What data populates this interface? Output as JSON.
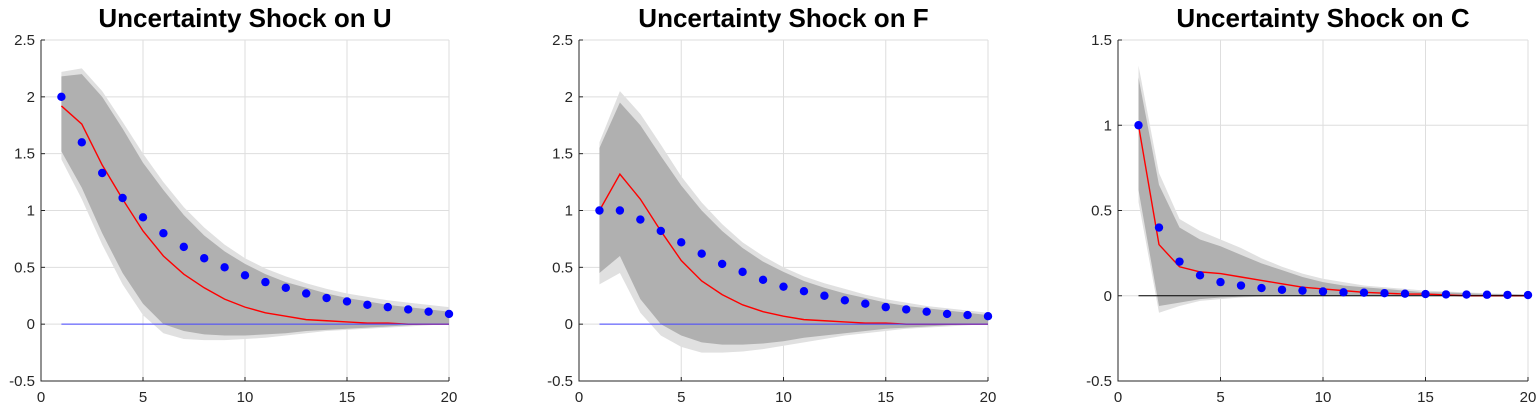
{
  "chart_data": [
    {
      "type": "line",
      "title": "Uncertainty Shock on U",
      "xlabel": "",
      "ylabel": "",
      "xlim": [
        0,
        20
      ],
      "ylim": [
        -0.5,
        2.5
      ],
      "xticks": [
        0,
        5,
        10,
        15,
        20
      ],
      "yticks": [
        -0.5,
        0,
        0.5,
        1,
        1.5,
        2,
        2.5
      ],
      "grid": true,
      "x": [
        1,
        2,
        3,
        4,
        5,
        6,
        7,
        8,
        9,
        10,
        11,
        12,
        13,
        14,
        15,
        16,
        17,
        18,
        19,
        20
      ],
      "series": [
        {
          "role": "outer-band",
          "color": "#e0e0e0",
          "upper": [
            2.22,
            2.25,
            2.05,
            1.78,
            1.5,
            1.25,
            1.03,
            0.85,
            0.7,
            0.58,
            0.49,
            0.42,
            0.36,
            0.31,
            0.27,
            0.24,
            0.21,
            0.19,
            0.17,
            0.15
          ],
          "lower": [
            1.45,
            1.1,
            0.7,
            0.35,
            0.08,
            -0.08,
            -0.13,
            -0.14,
            -0.14,
            -0.13,
            -0.12,
            -0.1,
            -0.08,
            -0.06,
            -0.05,
            -0.04,
            -0.03,
            -0.02,
            -0.01,
            0.0
          ]
        },
        {
          "role": "inner-band",
          "color": "#b0b0b0",
          "upper": [
            2.18,
            2.2,
            2.0,
            1.72,
            1.42,
            1.18,
            0.96,
            0.78,
            0.64,
            0.53,
            0.44,
            0.37,
            0.32,
            0.27,
            0.23,
            0.2,
            0.17,
            0.15,
            0.13,
            0.11
          ],
          "lower": [
            1.52,
            1.2,
            0.8,
            0.45,
            0.18,
            0.0,
            -0.06,
            -0.09,
            -0.1,
            -0.1,
            -0.09,
            -0.08,
            -0.06,
            -0.05,
            -0.04,
            -0.03,
            -0.02,
            -0.01,
            0.0,
            0.0
          ]
        },
        {
          "role": "median-line",
          "color": "#ff0000",
          "values": [
            1.92,
            1.76,
            1.4,
            1.1,
            0.82,
            0.6,
            0.44,
            0.32,
            0.22,
            0.15,
            0.1,
            0.07,
            0.04,
            0.03,
            0.02,
            0.01,
            0.01,
            0.0,
            0.0,
            0.0
          ]
        },
        {
          "role": "zero-line",
          "color": "#4444ff",
          "values": [
            0,
            0,
            0,
            0,
            0,
            0,
            0,
            0,
            0,
            0,
            0,
            0,
            0,
            0,
            0,
            0,
            0,
            0,
            0,
            0
          ]
        },
        {
          "role": "points",
          "color": "#0000ff",
          "values": [
            2.0,
            1.6,
            1.33,
            1.11,
            0.94,
            0.8,
            0.68,
            0.58,
            0.5,
            0.43,
            0.37,
            0.32,
            0.27,
            0.23,
            0.2,
            0.17,
            0.15,
            0.13,
            0.11,
            0.09
          ]
        }
      ]
    },
    {
      "type": "line",
      "title": "Uncertainty Shock on F",
      "xlabel": "",
      "ylabel": "",
      "xlim": [
        0,
        20
      ],
      "ylim": [
        -0.5,
        2.5
      ],
      "xticks": [
        0,
        5,
        10,
        15,
        20
      ],
      "yticks": [
        -0.5,
        0,
        0.5,
        1,
        1.5,
        2,
        2.5
      ],
      "grid": true,
      "x": [
        1,
        2,
        3,
        4,
        5,
        6,
        7,
        8,
        9,
        10,
        11,
        12,
        13,
        14,
        15,
        16,
        17,
        18,
        19,
        20
      ],
      "series": [
        {
          "role": "outer-band",
          "color": "#e0e0e0",
          "upper": [
            1.6,
            2.05,
            1.85,
            1.58,
            1.3,
            1.07,
            0.88,
            0.72,
            0.6,
            0.5,
            0.42,
            0.36,
            0.31,
            0.26,
            0.22,
            0.19,
            0.16,
            0.14,
            0.12,
            0.1
          ],
          "lower": [
            0.35,
            0.45,
            0.1,
            -0.1,
            -0.2,
            -0.25,
            -0.25,
            -0.24,
            -0.22,
            -0.19,
            -0.16,
            -0.13,
            -0.1,
            -0.08,
            -0.06,
            -0.04,
            -0.03,
            -0.02,
            -0.01,
            0.0
          ]
        },
        {
          "role": "inner-band",
          "color": "#b0b0b0",
          "upper": [
            1.55,
            1.95,
            1.75,
            1.48,
            1.22,
            1.0,
            0.82,
            0.67,
            0.55,
            0.46,
            0.38,
            0.32,
            0.27,
            0.23,
            0.19,
            0.16,
            0.14,
            0.12,
            0.1,
            0.08
          ],
          "lower": [
            0.45,
            0.6,
            0.22,
            0.0,
            -0.1,
            -0.16,
            -0.18,
            -0.18,
            -0.17,
            -0.15,
            -0.12,
            -0.1,
            -0.08,
            -0.06,
            -0.04,
            -0.03,
            -0.02,
            -0.01,
            0.0,
            0.0
          ]
        },
        {
          "role": "median-line",
          "color": "#ff0000",
          "values": [
            1.0,
            1.32,
            1.1,
            0.82,
            0.56,
            0.38,
            0.26,
            0.17,
            0.11,
            0.07,
            0.04,
            0.03,
            0.02,
            0.01,
            0.01,
            0.0,
            0.0,
            0.0,
            0.0,
            0.0
          ]
        },
        {
          "role": "zero-line",
          "color": "#4444ff",
          "values": [
            0,
            0,
            0,
            0,
            0,
            0,
            0,
            0,
            0,
            0,
            0,
            0,
            0,
            0,
            0,
            0,
            0,
            0,
            0,
            0
          ]
        },
        {
          "role": "points",
          "color": "#0000ff",
          "values": [
            1.0,
            1.0,
            0.92,
            0.82,
            0.72,
            0.62,
            0.53,
            0.46,
            0.39,
            0.33,
            0.29,
            0.25,
            0.21,
            0.18,
            0.15,
            0.13,
            0.11,
            0.09,
            0.08,
            0.07
          ]
        }
      ]
    },
    {
      "type": "line",
      "title": "Uncertainty Shock on C",
      "xlabel": "",
      "ylabel": "",
      "xlim": [
        0,
        20
      ],
      "ylim": [
        -0.5,
        1.5
      ],
      "xticks": [
        0,
        5,
        10,
        15,
        20
      ],
      "yticks": [
        -0.5,
        0,
        0.5,
        1,
        1.5
      ],
      "grid": true,
      "x": [
        1,
        2,
        3,
        4,
        5,
        6,
        7,
        8,
        9,
        10,
        11,
        12,
        13,
        14,
        15,
        16,
        17,
        18,
        19,
        20
      ],
      "series": [
        {
          "role": "outer-band",
          "color": "#e0e0e0",
          "upper": [
            1.35,
            0.72,
            0.45,
            0.38,
            0.33,
            0.28,
            0.22,
            0.17,
            0.13,
            0.1,
            0.08,
            0.06,
            0.05,
            0.04,
            0.03,
            0.025,
            0.02,
            0.015,
            0.01,
            0.01
          ],
          "lower": [
            0.55,
            -0.1,
            -0.06,
            -0.03,
            -0.02,
            -0.01,
            -0.005,
            0.0,
            0.0,
            0.0,
            0.0,
            0.0,
            0.0,
            0.0,
            0.0,
            0.0,
            0.0,
            0.0,
            0.0,
            0.0
          ]
        },
        {
          "role": "inner-band",
          "color": "#b0b0b0",
          "upper": [
            1.28,
            0.65,
            0.4,
            0.33,
            0.29,
            0.24,
            0.19,
            0.15,
            0.11,
            0.08,
            0.06,
            0.05,
            0.04,
            0.03,
            0.02,
            0.02,
            0.015,
            0.01,
            0.01,
            0.005
          ],
          "lower": [
            0.62,
            -0.06,
            -0.04,
            -0.02,
            -0.01,
            -0.005,
            0.0,
            0.0,
            0.0,
            0.0,
            0.0,
            0.0,
            0.0,
            0.0,
            0.0,
            0.0,
            0.0,
            0.0,
            0.0,
            0.0
          ]
        },
        {
          "role": "median-line",
          "color": "#ff0000",
          "values": [
            1.0,
            0.3,
            0.17,
            0.14,
            0.13,
            0.11,
            0.09,
            0.07,
            0.05,
            0.04,
            0.03,
            0.02,
            0.015,
            0.01,
            0.01,
            0.005,
            0.0,
            0.0,
            0.0,
            0.0
          ]
        },
        {
          "role": "zero-line",
          "color": "#000000",
          "values": [
            0,
            0,
            0,
            0,
            0,
            0,
            0,
            0,
            0,
            0,
            0,
            0,
            0,
            0,
            0,
            0,
            0,
            0,
            0,
            0
          ]
        },
        {
          "role": "points",
          "color": "#0000ff",
          "values": [
            1.0,
            0.4,
            0.2,
            0.12,
            0.08,
            0.06,
            0.045,
            0.035,
            0.03,
            0.025,
            0.02,
            0.018,
            0.015,
            0.012,
            0.01,
            0.008,
            0.007,
            0.006,
            0.005,
            0.004
          ]
        }
      ]
    }
  ]
}
